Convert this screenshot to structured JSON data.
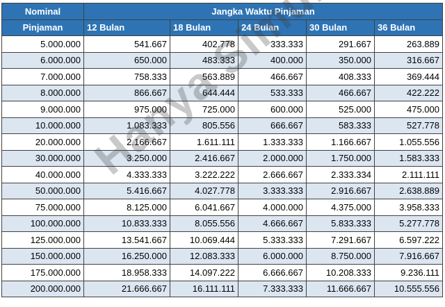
{
  "header": {
    "nominal_line1": "Nominal",
    "nominal_line2": "Pinjaman",
    "term_group": "Jangka Waktu Pinjaman",
    "terms": [
      "12 Bulan",
      "18 Bulan",
      "24 Bulan",
      "30 Bulan",
      "36 Bulan"
    ]
  },
  "rows": [
    {
      "nominal": "5.000.000",
      "values": [
        "541.667",
        "402.778",
        "333.333",
        "291.667",
        "263.889"
      ]
    },
    {
      "nominal": "6.000.000",
      "values": [
        "650.000",
        "483.333",
        "400.000",
        "350.000",
        "316.667"
      ]
    },
    {
      "nominal": "7.000.000",
      "values": [
        "758.333",
        "563.889",
        "466.667",
        "408.333",
        "369.444"
      ]
    },
    {
      "nominal": "8.000.000",
      "values": [
        "866.667",
        "644.444",
        "533.333",
        "466.667",
        "422.222"
      ]
    },
    {
      "nominal": "9.000.000",
      "values": [
        "975.000",
        "725.000",
        "600.000",
        "525.000",
        "475.000"
      ]
    },
    {
      "nominal": "10.000.000",
      "values": [
        "1.083.333",
        "805.556",
        "666.667",
        "583.333",
        "527.778"
      ]
    },
    {
      "nominal": "20.000.000",
      "values": [
        "2.166.667",
        "1.611.111",
        "1.333.333",
        "1.166.667",
        "1.055.556"
      ]
    },
    {
      "nominal": "30.000.000",
      "values": [
        "3.250.000",
        "2.416.667",
        "2.000.000",
        "1.750.000",
        "1.583.333"
      ]
    },
    {
      "nominal": "40.000.000",
      "values": [
        "4.333.333",
        "3.222.222",
        "2.666.667",
        "2.333.334",
        "2.111.111"
      ]
    },
    {
      "nominal": "50.000.000",
      "values": [
        "5.416.667",
        "4.027.778",
        "3.333.333",
        "2.916.667",
        "2.638.889"
      ]
    },
    {
      "nominal": "75.000.000",
      "values": [
        "8.125.000",
        "6.041.667",
        "4.000.000",
        "4.375.000",
        "3.958.333"
      ]
    },
    {
      "nominal": "100.000.000",
      "values": [
        "10.833.333",
        "8.055.556",
        "4.666.667",
        "5.833.333",
        "5.277.778"
      ]
    },
    {
      "nominal": "125.000.000",
      "values": [
        "13.541.667",
        "10.069.444",
        "5.333.333",
        "7.291.667",
        "6.597.222"
      ]
    },
    {
      "nominal": "150.000.000",
      "values": [
        "16.250.000",
        "12.083.333",
        "6.000.000",
        "8.750.000",
        "7.916.667"
      ]
    },
    {
      "nominal": "175.000.000",
      "values": [
        "18.958.333",
        "14.097.222",
        "6.666.667",
        "10.208.333",
        "9.236.111"
      ]
    },
    {
      "nominal": "200.000.000",
      "values": [
        "21.666.667",
        "16.111.111",
        "7.333.333",
        "11.666.667",
        "10.555.556"
      ]
    }
  ],
  "watermark": "Hanya Simulasi",
  "colors": {
    "header_bg": "#2e74b5",
    "header_text": "#ffffff",
    "row_alt_bg": "#dce6f1",
    "border": "#404040"
  }
}
